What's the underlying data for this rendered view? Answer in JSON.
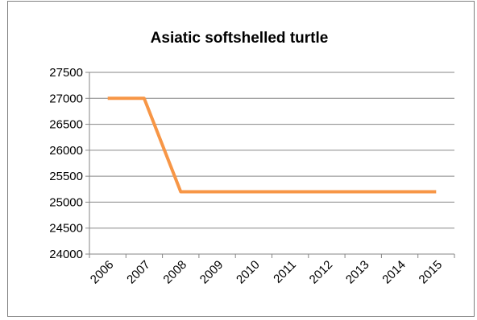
{
  "chart_data": {
    "type": "line",
    "title": "Asiatic softshelled turtle",
    "xlabel": "",
    "ylabel": "",
    "categories": [
      "2006",
      "2007",
      "2008",
      "2009",
      "2010",
      "2011",
      "2012",
      "2013",
      "2014",
      "2015"
    ],
    "series": [
      {
        "values": [
          27000,
          27000,
          25200,
          25200,
          25200,
          25200,
          25200,
          25200,
          25200,
          25200
        ],
        "color": "#F79646"
      }
    ],
    "ylim": [
      24000,
      27500
    ],
    "yticks": [
      24000,
      24500,
      25000,
      25500,
      26000,
      26500,
      27000,
      27500
    ],
    "grid": true,
    "legend": "none"
  }
}
